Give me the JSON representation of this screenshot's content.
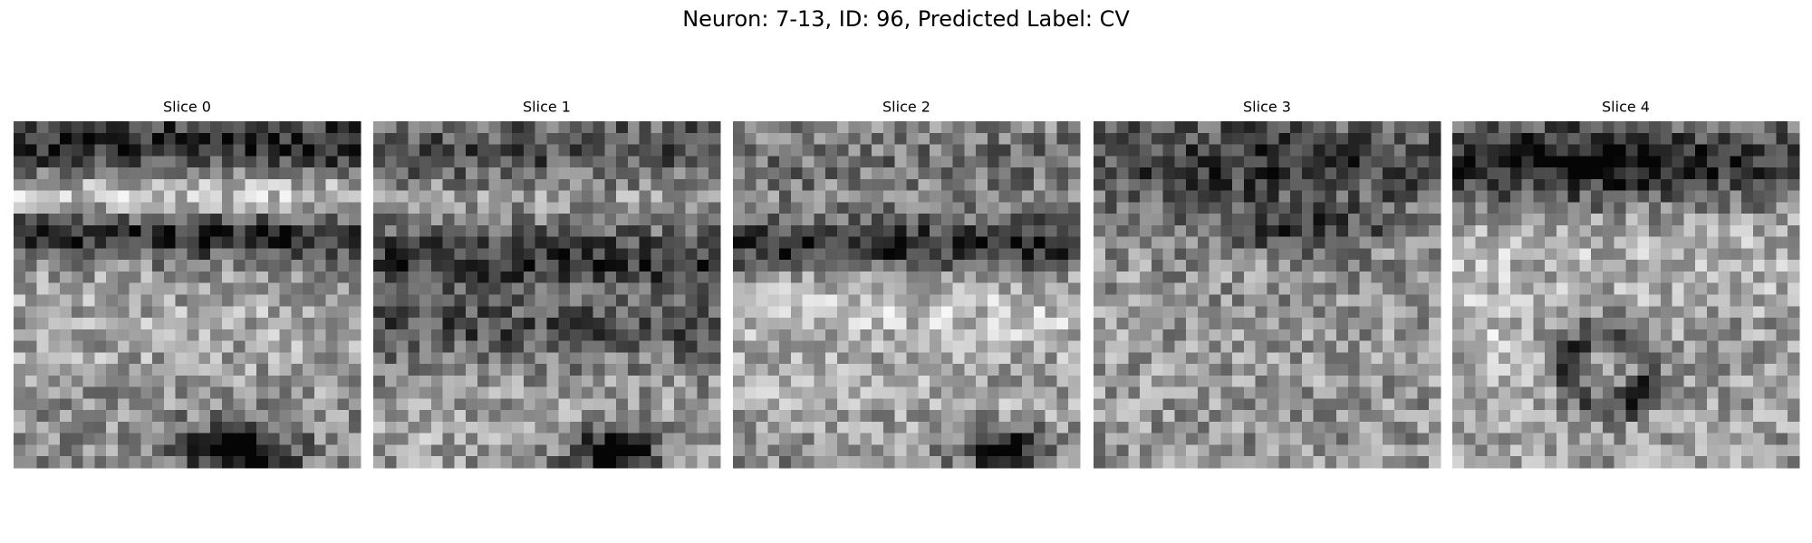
{
  "title": "Neuron: 7-13, ID: 96, Predicted Label: CV",
  "panels": [
    {
      "title": "Slice 0"
    },
    {
      "title": "Slice 1"
    },
    {
      "title": "Slice 2"
    },
    {
      "title": "Slice 3"
    },
    {
      "title": "Slice 4"
    }
  ]
}
